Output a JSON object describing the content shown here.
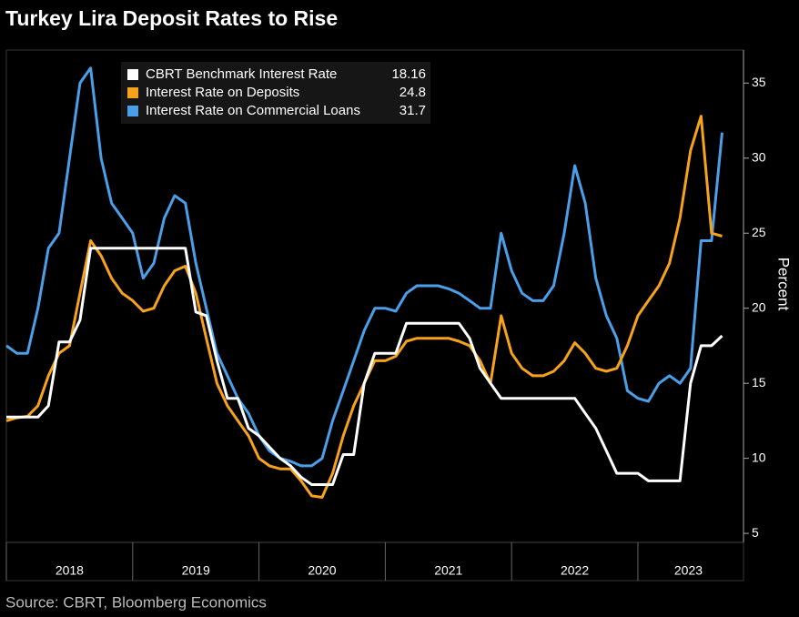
{
  "chart_data": {
    "type": "line",
    "title": "Turkey Lira Deposit Rates to Rise",
    "source": "Source: CBRT, Bloomberg Economics",
    "y_label": "Percent",
    "x": [
      2018,
      2018.083,
      2018.167,
      2018.25,
      2018.333,
      2018.417,
      2018.5,
      2018.583,
      2018.667,
      2018.75,
      2018.833,
      2018.917,
      2019,
      2019.083,
      2019.167,
      2019.25,
      2019.333,
      2019.417,
      2019.5,
      2019.583,
      2019.667,
      2019.75,
      2019.833,
      2019.917,
      2020,
      2020.083,
      2020.167,
      2020.25,
      2020.333,
      2020.417,
      2020.5,
      2020.583,
      2020.667,
      2020.75,
      2020.833,
      2020.917,
      2021,
      2021.083,
      2021.167,
      2021.25,
      2021.333,
      2021.417,
      2021.5,
      2021.583,
      2021.667,
      2021.75,
      2021.833,
      2021.917,
      2022,
      2022.083,
      2022.167,
      2022.25,
      2022.333,
      2022.417,
      2022.5,
      2022.583,
      2022.667,
      2022.75,
      2022.833,
      2022.917,
      2023,
      2023.083,
      2023.167,
      2023.25,
      2023.333,
      2023.417,
      2023.5,
      2023.583,
      2023.667
    ],
    "series": [
      {
        "name": "CBRT Benchmark Interest Rate",
        "last_value": 18.16,
        "color": "#ffffff",
        "values": [
          12.75,
          12.75,
          12.75,
          12.75,
          13.5,
          17.75,
          17.75,
          19.2,
          24,
          24,
          24,
          24,
          24,
          24,
          24,
          24,
          24,
          24,
          19.75,
          19.5,
          16.5,
          14,
          14,
          12,
          11.5,
          10.75,
          10,
          9.5,
          8.75,
          8.25,
          8.25,
          8.25,
          10.25,
          10.25,
          15,
          17,
          17,
          17,
          19,
          19,
          19,
          19,
          19,
          19,
          18,
          16,
          15,
          14,
          14,
          14,
          14,
          14,
          14,
          14,
          14,
          13,
          12,
          10.5,
          9,
          9,
          9,
          8.5,
          8.5,
          8.5,
          8.5,
          15,
          17.5,
          17.5,
          18.16
        ]
      },
      {
        "name": "Interest Rate on Deposits",
        "last_value": 24.8,
        "color": "#f7a21b",
        "values": [
          12.5,
          12.7,
          12.8,
          13.5,
          15.5,
          17,
          17.5,
          21,
          24.5,
          23.5,
          22,
          21,
          20.5,
          19.8,
          20,
          21.5,
          22.5,
          22.8,
          21,
          18,
          15,
          13.5,
          12.5,
          11.5,
          10,
          9.5,
          9.3,
          9.3,
          8.5,
          7.5,
          7.4,
          9,
          11.5,
          13.5,
          15,
          16.5,
          16.5,
          16.8,
          17.8,
          18,
          18,
          18,
          18,
          17.8,
          17.5,
          16.5,
          15,
          19.5,
          17,
          16,
          15.5,
          15.5,
          15.8,
          16.5,
          17.7,
          17,
          16,
          15.8,
          16,
          17.5,
          19.5,
          20.5,
          21.5,
          23,
          26,
          30.5,
          32.8,
          25,
          24.8
        ]
      },
      {
        "name": "Interest Rate on Commercial Loans",
        "last_value": 31.7,
        "color": "#4b9fe8",
        "values": [
          17.5,
          17,
          17,
          20,
          24,
          25,
          30,
          35,
          36,
          30,
          27,
          26,
          25,
          22,
          23,
          26,
          27.5,
          27,
          23,
          20,
          17,
          15.5,
          14,
          13,
          11.5,
          10.5,
          10,
          9.8,
          9.5,
          9.5,
          10,
          12.5,
          14.5,
          16.5,
          18.5,
          20,
          20,
          19.8,
          21,
          21.5,
          21.5,
          21.5,
          21.3,
          21,
          20.5,
          20,
          20,
          25,
          22.5,
          21,
          20.5,
          20.5,
          21.5,
          25,
          29.5,
          27,
          22,
          19.5,
          18,
          14.5,
          14,
          13.8,
          15,
          15.5,
          15,
          16,
          24.5,
          24.5,
          31.7
        ]
      }
    ],
    "xlim": [
      2018,
      2023.8
    ],
    "xticks": [
      {
        "value": 2018,
        "label": "2018"
      },
      {
        "value": 2019,
        "label": "2019"
      },
      {
        "value": 2020,
        "label": "2020"
      },
      {
        "value": 2021,
        "label": "2021"
      },
      {
        "value": 2022,
        "label": "2022"
      },
      {
        "value": 2023,
        "label": "2023"
      }
    ],
    "ylim": [
      4.4,
      37.2
    ],
    "yticks": [
      5,
      10,
      15,
      20,
      25,
      30,
      35
    ]
  }
}
